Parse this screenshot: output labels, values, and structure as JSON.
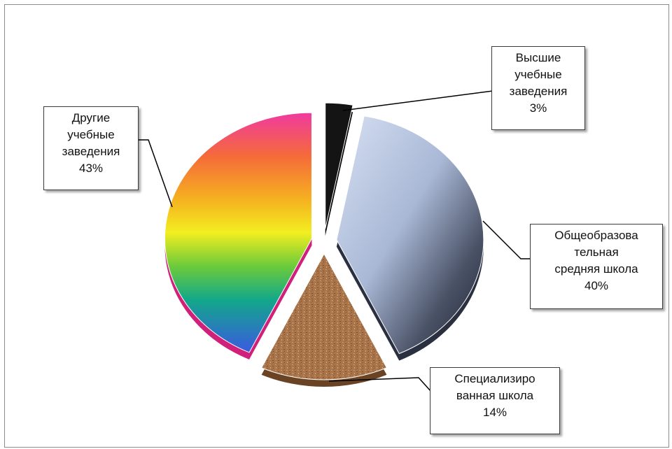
{
  "chart_data": {
    "type": "pie",
    "title": "",
    "slices": [
      {
        "label_lines": [
          "Высшие",
          "учебные",
          "заведения"
        ],
        "value": 3,
        "value_label": "3%",
        "color": "#1a1a1a"
      },
      {
        "label_lines": [
          "Общеобразова",
          "тельная",
          "средняя школа"
        ],
        "value": 40,
        "value_label": "40%",
        "color": "#b8c8e6"
      },
      {
        "label_lines": [
          "Специализиро",
          "ванная школа"
        ],
        "value": 14,
        "value_label": "14%",
        "color": "#a9744a"
      },
      {
        "label_lines": [
          "Другие",
          "учебные",
          "заведения"
        ],
        "value": 43,
        "value_label": "43%",
        "color": "gradient-rainbow"
      }
    ],
    "exploded": true,
    "legend": "none",
    "data_labels": "callouts"
  }
}
